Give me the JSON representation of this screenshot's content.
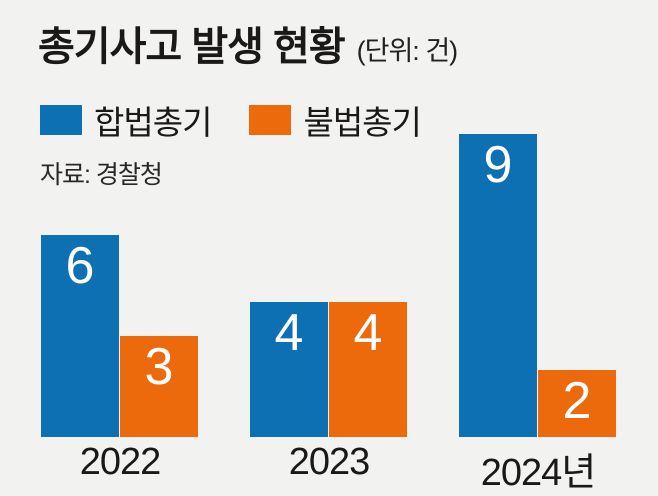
{
  "header": {
    "title": "총기사고 발생 현황",
    "unit": "(단위: 건)"
  },
  "source": "자료: 경찰청",
  "colors": {
    "legal_blue": "#0c70b2",
    "illegal_orange": "#ec690c",
    "background": "#f2f2f0",
    "text_dark": "#1b1918",
    "bar_value_text": "#ffffff"
  },
  "chart_data": {
    "type": "bar",
    "title": "총기사고 발생 현황",
    "unit_label": "(단위: 건)",
    "source": "자료: 경찰청",
    "categories": [
      "2022",
      "2023",
      "2024년"
    ],
    "series": [
      {
        "name": "합법총기",
        "color": "#0c70b2",
        "values": [
          6,
          4,
          9
        ]
      },
      {
        "name": "불법총기",
        "color": "#ec690c",
        "values": [
          3,
          4,
          2
        ]
      }
    ],
    "value_labels_shown": true,
    "ylim": [
      0,
      9
    ],
    "grid": false,
    "axis_line": false,
    "legend_position": "top-left"
  }
}
